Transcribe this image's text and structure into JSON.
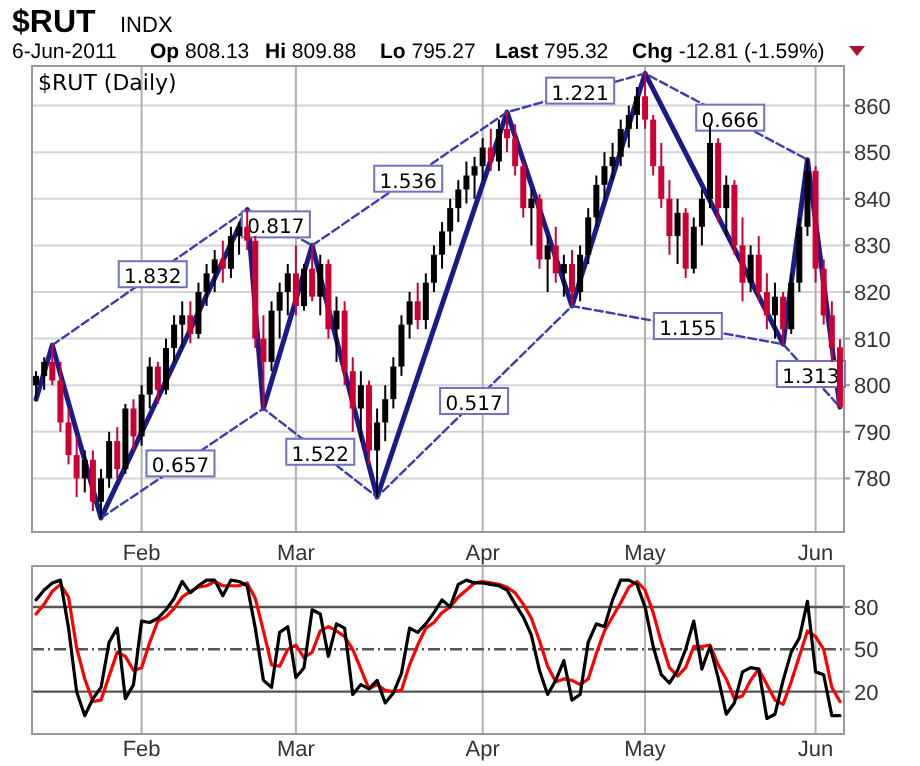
{
  "chart_data": [
    {
      "type": "candlestick",
      "title": "$RUT",
      "subtitle": "INDX",
      "legend_title": "$RUT (Daily)",
      "annotations": [
        "6-Jun-2011",
        "Op 808.13",
        "Hi 809.88",
        "Lo 795.27",
        "Last 795.32",
        "Chg -12.81 (-1.59%)",
        {
          "text": "1.832",
          "y": 823.6
        },
        {
          "text": "0.817",
          "y": 834.3
        },
        {
          "text": "1.536",
          "y": 844.1
        },
        {
          "text": "1.221",
          "y": 863
        },
        {
          "text": "0.666",
          "y": 857.2
        },
        {
          "text": "0.657",
          "y": 783
        },
        {
          "text": "1.522",
          "y": 785.5
        },
        {
          "text": "0.517",
          "y": 796.4
        },
        {
          "text": "1.155",
          "y": 812.5
        },
        {
          "text": "1.313",
          "y": 802.2
        }
      ],
      "categories": [
        null,
        null,
        null,
        null,
        null,
        null,
        null,
        null,
        null,
        null,
        null,
        null,
        null,
        "Feb",
        null,
        null,
        null,
        null,
        null,
        null,
        null,
        null,
        null,
        null,
        null,
        null,
        null,
        null,
        null,
        null,
        null,
        null,
        "Mar",
        null,
        null,
        null,
        null,
        null,
        null,
        null,
        null,
        null,
        null,
        null,
        null,
        null,
        null,
        null,
        null,
        null,
        null,
        null,
        null,
        null,
        null,
        "Apr",
        null,
        null,
        null,
        null,
        null,
        null,
        null,
        null,
        null,
        null,
        null,
        null,
        null,
        null,
        null,
        null,
        null,
        null,
        null,
        "May",
        null,
        null,
        null,
        null,
        null,
        null,
        null,
        null,
        null,
        null,
        null,
        null,
        null,
        null,
        null,
        null,
        null,
        null,
        null,
        null,
        "Jun",
        null,
        null,
        null
      ],
      "ohlc": [
        [
          800,
          803,
          797,
          802
        ],
        [
          802,
          806,
          799,
          805
        ],
        [
          805,
          808.6,
          800,
          801
        ],
        [
          801,
          805,
          790,
          792
        ],
        [
          792,
          795,
          783,
          785
        ],
        [
          785,
          789,
          776,
          780
        ],
        [
          780,
          786,
          777,
          784
        ],
        [
          784,
          786,
          773,
          775
        ],
        [
          775,
          782,
          771.5,
          780
        ],
        [
          780,
          790,
          778,
          788
        ],
        [
          788,
          791,
          780,
          782
        ],
        [
          782,
          796,
          781,
          795
        ],
        [
          795,
          797,
          786,
          789
        ],
        [
          789,
          800,
          787,
          798
        ],
        [
          798,
          806,
          795,
          804
        ],
        [
          804,
          805,
          796,
          799
        ],
        [
          799,
          810,
          798,
          808
        ],
        [
          808,
          815,
          805,
          813
        ],
        [
          813,
          818,
          808,
          815
        ],
        [
          815,
          818,
          809,
          811
        ],
        [
          811,
          822,
          810,
          820
        ],
        [
          820,
          826,
          817,
          824
        ],
        [
          824,
          829,
          820,
          827
        ],
        [
          827,
          831,
          822,
          825
        ],
        [
          825,
          834,
          823,
          832
        ],
        [
          832,
          835,
          828,
          834
        ],
        [
          834,
          837.7,
          829,
          831
        ],
        [
          831,
          832,
          808,
          810
        ],
        [
          810,
          815,
          795,
          805
        ],
        [
          805,
          818,
          803,
          816
        ],
        [
          816,
          822,
          810,
          820
        ],
        [
          820,
          826,
          815,
          824
        ],
        [
          824,
          830,
          815,
          817
        ],
        [
          817,
          826,
          816,
          825
        ],
        [
          825,
          830,
          818,
          819
        ],
        [
          819,
          828,
          815,
          826
        ],
        [
          826,
          827,
          810,
          812
        ],
        [
          812,
          819,
          805,
          816
        ],
        [
          816,
          818,
          800,
          803
        ],
        [
          803,
          806,
          790,
          795
        ],
        [
          795,
          803,
          788,
          800
        ],
        [
          800,
          801,
          783,
          786
        ],
        [
          786,
          795,
          776,
          792
        ],
        [
          792,
          800,
          788,
          797
        ],
        [
          797,
          806,
          795,
          804
        ],
        [
          804,
          815,
          802,
          813
        ],
        [
          813,
          820,
          810,
          818
        ],
        [
          818,
          822,
          812,
          814
        ],
        [
          814,
          824,
          812,
          822
        ],
        [
          822,
          830,
          820,
          828
        ],
        [
          828,
          835,
          825,
          833
        ],
        [
          833,
          840,
          830,
          838
        ],
        [
          838,
          844,
          835,
          842
        ],
        [
          842,
          848,
          839,
          845
        ],
        [
          845,
          849,
          840,
          847
        ],
        [
          847,
          853,
          844,
          851
        ],
        [
          851,
          855,
          846,
          848
        ],
        [
          848,
          857,
          846,
          855
        ],
        [
          855,
          858.6,
          850,
          853
        ],
        [
          853,
          856,
          845,
          847
        ],
        [
          847,
          848,
          836,
          838
        ],
        [
          838,
          842,
          830,
          840
        ],
        [
          840,
          841,
          825,
          827
        ],
        [
          827,
          832,
          820,
          830
        ],
        [
          830,
          834,
          822,
          824
        ],
        [
          824,
          828,
          819,
          826
        ],
        [
          826,
          829,
          817,
          820
        ],
        [
          820,
          830,
          818,
          828
        ],
        [
          828,
          838,
          826,
          836
        ],
        [
          836,
          845,
          834,
          843
        ],
        [
          843,
          850,
          840,
          847
        ],
        [
          847,
          852,
          844,
          849
        ],
        [
          849,
          857,
          847,
          855
        ],
        [
          855,
          860,
          851,
          858
        ],
        [
          858,
          864,
          855,
          862
        ],
        [
          862,
          866.9,
          855,
          857
        ],
        [
          857,
          858,
          845,
          847
        ],
        [
          847,
          852,
          838,
          840
        ],
        [
          840,
          844,
          828,
          832
        ],
        [
          832,
          840,
          826,
          837
        ],
        [
          837,
          838,
          823,
          825
        ],
        [
          825,
          836,
          824,
          834
        ],
        [
          834,
          842,
          830,
          840
        ],
        [
          840,
          856,
          838,
          852
        ],
        [
          852,
          853,
          835,
          838
        ],
        [
          838,
          845,
          832,
          843
        ],
        [
          843,
          844,
          828,
          830
        ],
        [
          830,
          836,
          818,
          822
        ],
        [
          822,
          830,
          820,
          828
        ],
        [
          828,
          832,
          818,
          820
        ],
        [
          820,
          824,
          812,
          815
        ],
        [
          815,
          822,
          810,
          819
        ],
        [
          819,
          820,
          808.8,
          812
        ],
        [
          812,
          824,
          811,
          822
        ],
        [
          822,
          836,
          820,
          834
        ],
        [
          834,
          848.4,
          832,
          846
        ],
        [
          846,
          847,
          822,
          825
        ],
        [
          825,
          827,
          813,
          815
        ],
        [
          815,
          818,
          805,
          808
        ],
        [
          808.13,
          809.88,
          795.27,
          795.32
        ]
      ],
      "colors": [
        "#000000",
        "#000000",
        "#cc0033",
        "#cc0033",
        "#cc0033",
        "#cc0033",
        "#000000",
        "#cc0033",
        "#000000",
        "#000000",
        "#cc0033",
        "#000000",
        "#cc0033",
        "#000000",
        "#000000",
        "#cc0033",
        "#000000",
        "#000000",
        "#000000",
        "#cc0033",
        "#000000",
        "#000000",
        "#000000",
        "#cc0033",
        "#000000",
        "#000000",
        "#cc0033",
        "#cc0033",
        "#cc0033",
        "#000000",
        "#000000",
        "#000000",
        "#cc0033",
        "#000000",
        "#cc0033",
        "#000000",
        "#cc0033",
        "#000000",
        "#cc0033",
        "#cc0033",
        "#000000",
        "#cc0033",
        "#000000",
        "#000000",
        "#000000",
        "#000000",
        "#000000",
        "#cc0033",
        "#000000",
        "#000000",
        "#000000",
        "#000000",
        "#000000",
        "#000000",
        "#000000",
        "#000000",
        "#cc0033",
        "#000000",
        "#cc0033",
        "#cc0033",
        "#cc0033",
        "#000000",
        "#cc0033",
        "#000000",
        "#cc0033",
        "#000000",
        "#cc0033",
        "#000000",
        "#000000",
        "#000000",
        "#000000",
        "#000000",
        "#000000",
        "#000000",
        "#000000",
        "#cc0033",
        "#cc0033",
        "#cc0033",
        "#cc0033",
        "#000000",
        "#cc0033",
        "#000000",
        "#000000",
        "#000000",
        "#cc0033",
        "#000000",
        "#cc0033",
        "#cc0033",
        "#000000",
        "#cc0033",
        "#cc0033",
        "#000000",
        "#cc0033",
        "#000000",
        "#000000",
        "#000000",
        "#cc0033",
        "#cc0033",
        "#cc0033",
        "#cc0033"
      ],
      "series": [
        {
          "type": "line",
          "color": "#1a1a88",
          "values": [
            797,
            null,
            808.6,
            null,
            null,
            null,
            null,
            null,
            771.5,
            null,
            null,
            null,
            null,
            null,
            null,
            null,
            null,
            null,
            null,
            null,
            null,
            null,
            null,
            null,
            null,
            null,
            837.7,
            null,
            795,
            null,
            null,
            null,
            null,
            null,
            830,
            null,
            null,
            null,
            null,
            null,
            null,
            null,
            776,
            null,
            null,
            null,
            null,
            null,
            null,
            null,
            null,
            null,
            null,
            null,
            null,
            null,
            null,
            null,
            858.6,
            null,
            null,
            null,
            null,
            null,
            null,
            null,
            817,
            null,
            null,
            null,
            null,
            null,
            null,
            null,
            null,
            866.9,
            null,
            null,
            null,
            null,
            null,
            null,
            null,
            null,
            null,
            null,
            null,
            null,
            null,
            null,
            null,
            null,
            808.8,
            null,
            null,
            848.4,
            null,
            null,
            null,
            795.3
          ]
        },
        {
          "type": "line",
          "color": "#3c3cb0",
          "line_style": "dashed",
          "values": [
            null,
            null,
            808.6,
            null,
            null,
            null,
            null,
            null,
            null,
            null,
            null,
            null,
            null,
            null,
            null,
            null,
            null,
            null,
            null,
            null,
            null,
            null,
            null,
            null,
            null,
            null,
            837.7,
            null,
            null,
            null,
            null,
            null,
            null,
            null,
            830,
            null,
            null,
            null,
            null,
            null,
            null,
            null,
            null,
            null,
            null,
            null,
            null,
            null,
            null,
            null,
            null,
            null,
            null,
            null,
            null,
            null,
            null,
            null,
            858.6,
            null,
            null,
            null,
            null,
            null,
            null,
            null,
            null,
            null,
            null,
            null,
            null,
            null,
            null,
            null,
            null,
            866.9,
            null,
            null,
            null,
            null,
            null,
            null,
            null,
            null,
            null,
            null,
            null,
            null,
            null,
            null,
            null,
            null,
            null,
            null,
            null,
            848.4,
            null,
            null,
            null,
            null
          ]
        },
        {
          "type": "line",
          "color": "#3c3cb0",
          "line_style": "dashed",
          "values": [
            null,
            null,
            null,
            null,
            null,
            null,
            null,
            null,
            771.5,
            null,
            null,
            null,
            null,
            null,
            null,
            null,
            null,
            null,
            null,
            null,
            null,
            null,
            null,
            null,
            null,
            null,
            null,
            null,
            795,
            null,
            null,
            null,
            null,
            null,
            null,
            null,
            null,
            null,
            null,
            null,
            null,
            null,
            776,
            null,
            null,
            null,
            null,
            null,
            null,
            null,
            null,
            null,
            null,
            null,
            null,
            null,
            null,
            null,
            null,
            null,
            null,
            null,
            null,
            null,
            null,
            null,
            817,
            null,
            null,
            null,
            null,
            null,
            null,
            null,
            null,
            null,
            null,
            null,
            null,
            null,
            null,
            null,
            null,
            null,
            null,
            null,
            null,
            null,
            null,
            null,
            null,
            null,
            808.8,
            null,
            null,
            null,
            null,
            null,
            null,
            795.3
          ]
        }
      ],
      "ylim": [
        768.5,
        868.5
      ],
      "yticks": [
        780,
        790,
        800,
        810,
        820,
        830,
        840,
        850,
        860
      ],
      "grid": true
    },
    {
      "type": "line",
      "categories": [
        null,
        null,
        null,
        null,
        null,
        null,
        null,
        null,
        null,
        null,
        null,
        null,
        null,
        "Feb",
        null,
        null,
        null,
        null,
        null,
        null,
        null,
        null,
        null,
        null,
        null,
        null,
        null,
        null,
        null,
        null,
        null,
        null,
        "Mar",
        null,
        null,
        null,
        null,
        null,
        null,
        null,
        null,
        null,
        null,
        null,
        null,
        null,
        null,
        null,
        null,
        null,
        null,
        null,
        null,
        null,
        null,
        "Apr",
        null,
        null,
        null,
        null,
        null,
        null,
        null,
        null,
        null,
        null,
        null,
        null,
        null,
        null,
        null,
        null,
        null,
        null,
        null,
        "May",
        null,
        null,
        null,
        null,
        null,
        null,
        null,
        null,
        null,
        null,
        null,
        null,
        null,
        null,
        null,
        null,
        null,
        null,
        null,
        null,
        "Jun",
        null,
        null,
        null
      ],
      "series": [
        {
          "color": "#ff0000",
          "values": [
            75,
            82,
            91,
            96,
            87,
            51,
            29,
            13,
            14,
            31,
            48,
            45,
            35,
            37,
            55,
            70,
            73,
            79,
            87,
            91,
            94,
            95,
            98,
            95,
            95,
            95,
            97,
            86,
            63,
            39,
            38,
            50,
            53,
            44,
            48,
            63,
            66,
            63,
            59,
            50,
            36,
            22,
            25,
            21,
            20,
            21,
            39,
            53,
            65,
            69,
            76,
            80,
            87,
            92,
            97,
            98,
            97,
            96,
            94,
            90,
            82,
            72,
            56,
            38,
            27,
            29,
            28,
            25,
            29,
            47,
            63,
            73,
            83,
            94,
            98,
            92,
            76,
            55,
            37,
            31,
            37,
            52,
            52,
            53,
            39,
            29,
            15,
            17,
            28,
            36,
            25,
            14,
            11,
            27,
            45,
            63,
            59,
            50,
            23,
            13
          ]
        },
        {
          "color": "#000000",
          "values": [
            85,
            92,
            97,
            99,
            65,
            20,
            3,
            15,
            23,
            55,
            65,
            15,
            25,
            70,
            69,
            72,
            78,
            86,
            98,
            90,
            95,
            99,
            99,
            88,
            99,
            98,
            95,
            65,
            28,
            23,
            62,
            66,
            30,
            37,
            78,
            75,
            45,
            68,
            65,
            18,
            25,
            22,
            28,
            12,
            19,
            33,
            65,
            62,
            68,
            76,
            85,
            80,
            96,
            99,
            97,
            97,
            96,
            95,
            92,
            82,
            73,
            60,
            35,
            18,
            28,
            42,
            14,
            18,
            55,
            68,
            66,
            85,
            99,
            99,
            96,
            80,
            52,
            32,
            26,
            35,
            50,
            70,
            36,
            52,
            30,
            4,
            12,
            34,
            37,
            36,
            1,
            4,
            28,
            48,
            58,
            84,
            34,
            32,
            3,
            3
          ]
        }
      ],
      "ref_lines": [
        {
          "axis": "y",
          "value": 80,
          "color": "#555555"
        },
        {
          "axis": "y",
          "value": 50,
          "color": "#555555",
          "line_style": "dashed"
        },
        {
          "axis": "y",
          "value": 20,
          "color": "#555555"
        }
      ],
      "ylim": [
        -10,
        109
      ],
      "yticks": [
        20,
        50,
        80
      ],
      "grid": "x"
    }
  ]
}
